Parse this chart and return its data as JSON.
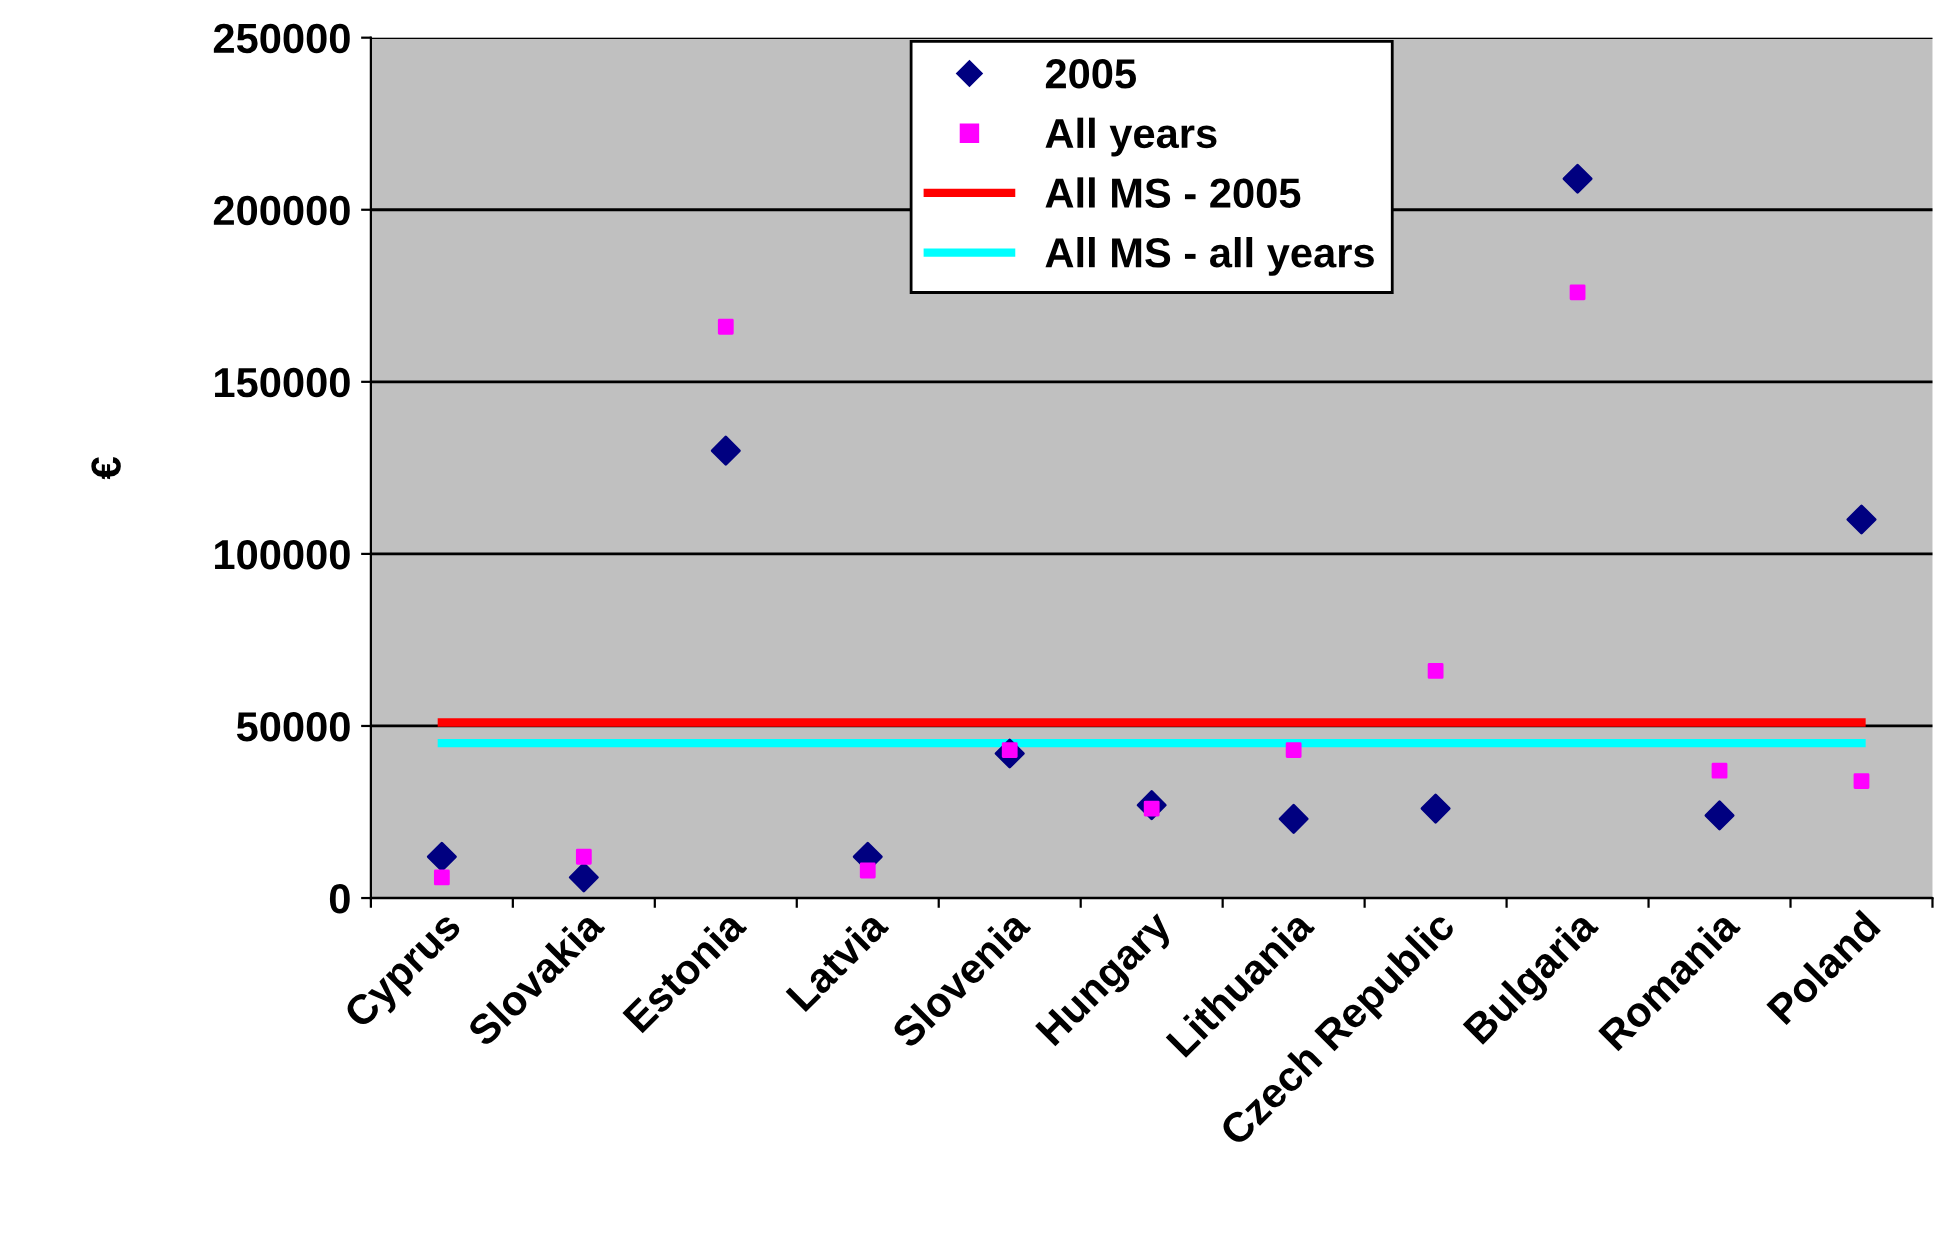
{
  "chart_data": {
    "type": "scatter",
    "ylabel": "€",
    "categories": [
      "Cyprus",
      "Slovakia",
      "Estonia",
      "Latvia",
      "Slovenia",
      "Hungary",
      "Lithuania",
      "Czech Republic",
      "Bulgaria",
      "Romania",
      "Poland"
    ],
    "series": [
      {
        "name": "2005",
        "color": "#000080",
        "marker": "diamond",
        "values": [
          12000,
          6000,
          130000,
          12000,
          42000,
          27000,
          23000,
          26000,
          209000,
          24000,
          110000
        ]
      },
      {
        "name": "All years",
        "color": "#ff00ff",
        "marker": "square",
        "values": [
          6000,
          12000,
          166000,
          8000,
          43000,
          26000,
          43000,
          66000,
          176000,
          37000,
          34000
        ]
      },
      {
        "name": "All MS - 2005",
        "type": "line",
        "color": "#ff0000",
        "marker": "none",
        "values": [
          51000,
          51000,
          51000,
          51000,
          51000,
          51000,
          51000,
          51000,
          51000,
          51000,
          51000
        ]
      },
      {
        "name": "All MS - all years",
        "type": "line",
        "color": "#00ffff",
        "marker": "none",
        "values": [
          45000,
          45000,
          45000,
          45000,
          45000,
          45000,
          45000,
          45000,
          45000,
          45000,
          45000
        ]
      }
    ],
    "ylim": [
      0,
      250000
    ],
    "yticks": [
      0,
      50000,
      100000,
      150000,
      200000,
      250000
    ],
    "grid": "y",
    "legend": "top"
  }
}
